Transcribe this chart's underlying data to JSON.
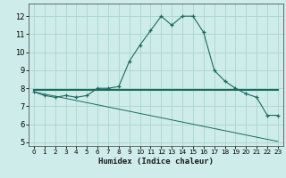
{
  "xlabel": "Humidex (Indice chaleur)",
  "xlim": [
    -0.5,
    23.5
  ],
  "ylim": [
    4.8,
    12.7
  ],
  "yticks": [
    5,
    6,
    7,
    8,
    9,
    10,
    11,
    12
  ],
  "xticks": [
    0,
    1,
    2,
    3,
    4,
    5,
    6,
    7,
    8,
    9,
    10,
    11,
    12,
    13,
    14,
    15,
    16,
    17,
    18,
    19,
    20,
    21,
    22,
    23
  ],
  "bg_color": "#ceecea",
  "line_color": "#1a6b5e",
  "grid_color": "#aad5d0",
  "series1_x": [
    0,
    1,
    2,
    3,
    4,
    5,
    6,
    7,
    8,
    9,
    10,
    11,
    12,
    13,
    14,
    15,
    16,
    17,
    18,
    19,
    20,
    21,
    22,
    23
  ],
  "series1_y": [
    7.8,
    7.6,
    7.5,
    7.6,
    7.5,
    7.6,
    8.0,
    8.0,
    8.1,
    9.5,
    10.4,
    11.2,
    12.0,
    11.5,
    12.0,
    12.0,
    11.1,
    9.0,
    8.4,
    8.0,
    7.7,
    7.5,
    6.5,
    6.5
  ],
  "series2_x": [
    0,
    23
  ],
  "series2_y": [
    7.9,
    7.9
  ],
  "series3_x": [
    0,
    23
  ],
  "series3_y": [
    7.8,
    5.05
  ]
}
